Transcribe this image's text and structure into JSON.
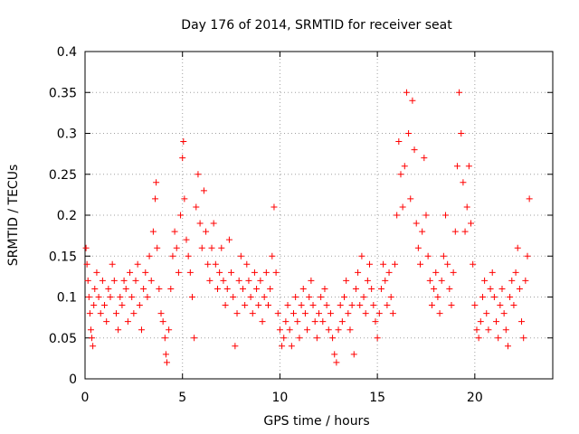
{
  "chart_data": {
    "type": "scatter",
    "title": "Day 176 of 2014, SRMTID for receiver seat",
    "xlabel": "GPS time / hours",
    "ylabel": "SRMTID / TECUs",
    "xlim": [
      0,
      24
    ],
    "ylim": [
      0,
      0.4
    ],
    "x_ticks": [
      0,
      5,
      10,
      15,
      20
    ],
    "x_tick_labels": [
      "0",
      "5",
      "10",
      "15",
      "20"
    ],
    "y_ticks": [
      0,
      0.05,
      0.1,
      0.15,
      0.2,
      0.25,
      0.3,
      0.35,
      0.4
    ],
    "y_tick_labels": [
      "0",
      "0.05",
      "0.1",
      "0.15",
      "0.2",
      "0.25",
      "0.3",
      "0.35",
      "0.4"
    ],
    "grid": true,
    "marker": "+",
    "marker_color": "#ff0000",
    "series": [
      {
        "name": "SRMTID",
        "points": [
          [
            0.05,
            0.16
          ],
          [
            0.1,
            0.14
          ],
          [
            0.15,
            0.12
          ],
          [
            0.2,
            0.1
          ],
          [
            0.25,
            0.08
          ],
          [
            0.3,
            0.06
          ],
          [
            0.35,
            0.05
          ],
          [
            0.4,
            0.04
          ],
          [
            0.45,
            0.09
          ],
          [
            0.5,
            0.11
          ],
          [
            0.6,
            0.13
          ],
          [
            0.7,
            0.1
          ],
          [
            0.8,
            0.08
          ],
          [
            0.9,
            0.12
          ],
          [
            1.0,
            0.09
          ],
          [
            1.1,
            0.07
          ],
          [
            1.2,
            0.11
          ],
          [
            1.3,
            0.1
          ],
          [
            1.4,
            0.14
          ],
          [
            1.5,
            0.12
          ],
          [
            1.6,
            0.08
          ],
          [
            1.7,
            0.06
          ],
          [
            1.8,
            0.1
          ],
          [
            1.9,
            0.09
          ],
          [
            2.0,
            0.12
          ],
          [
            2.1,
            0.11
          ],
          [
            2.2,
            0.07
          ],
          [
            2.3,
            0.13
          ],
          [
            2.4,
            0.1
          ],
          [
            2.5,
            0.08
          ],
          [
            2.6,
            0.12
          ],
          [
            2.7,
            0.14
          ],
          [
            2.8,
            0.09
          ],
          [
            2.9,
            0.06
          ],
          [
            3.0,
            0.11
          ],
          [
            3.1,
            0.13
          ],
          [
            3.2,
            0.1
          ],
          [
            3.3,
            0.15
          ],
          [
            3.4,
            0.12
          ],
          [
            3.5,
            0.18
          ],
          [
            3.6,
            0.22
          ],
          [
            3.65,
            0.24
          ],
          [
            3.7,
            0.16
          ],
          [
            3.8,
            0.11
          ],
          [
            3.9,
            0.08
          ],
          [
            4.0,
            0.07
          ],
          [
            4.1,
            0.05
          ],
          [
            4.15,
            0.03
          ],
          [
            4.2,
            0.02
          ],
          [
            4.3,
            0.06
          ],
          [
            4.4,
            0.11
          ],
          [
            4.5,
            0.15
          ],
          [
            4.6,
            0.18
          ],
          [
            4.7,
            0.16
          ],
          [
            4.8,
            0.13
          ],
          [
            4.9,
            0.2
          ],
          [
            5.0,
            0.27
          ],
          [
            5.05,
            0.29
          ],
          [
            5.1,
            0.22
          ],
          [
            5.2,
            0.17
          ],
          [
            5.3,
            0.15
          ],
          [
            5.4,
            0.13
          ],
          [
            5.5,
            0.1
          ],
          [
            5.6,
            0.05
          ],
          [
            5.7,
            0.21
          ],
          [
            5.8,
            0.25
          ],
          [
            5.9,
            0.19
          ],
          [
            6.0,
            0.16
          ],
          [
            6.1,
            0.23
          ],
          [
            6.2,
            0.18
          ],
          [
            6.3,
            0.14
          ],
          [
            6.4,
            0.12
          ],
          [
            6.5,
            0.16
          ],
          [
            6.6,
            0.19
          ],
          [
            6.7,
            0.14
          ],
          [
            6.8,
            0.11
          ],
          [
            6.9,
            0.13
          ],
          [
            7.0,
            0.16
          ],
          [
            7.1,
            0.12
          ],
          [
            7.2,
            0.09
          ],
          [
            7.3,
            0.11
          ],
          [
            7.4,
            0.17
          ],
          [
            7.5,
            0.13
          ],
          [
            7.6,
            0.1
          ],
          [
            7.7,
            0.04
          ],
          [
            7.8,
            0.08
          ],
          [
            7.9,
            0.12
          ],
          [
            8.0,
            0.15
          ],
          [
            8.1,
            0.11
          ],
          [
            8.2,
            0.09
          ],
          [
            8.3,
            0.14
          ],
          [
            8.4,
            0.12
          ],
          [
            8.5,
            0.1
          ],
          [
            8.6,
            0.08
          ],
          [
            8.7,
            0.13
          ],
          [
            8.8,
            0.11
          ],
          [
            8.9,
            0.09
          ],
          [
            9.0,
            0.12
          ],
          [
            9.1,
            0.07
          ],
          [
            9.2,
            0.1
          ],
          [
            9.3,
            0.13
          ],
          [
            9.4,
            0.09
          ],
          [
            9.5,
            0.11
          ],
          [
            9.6,
            0.15
          ],
          [
            9.7,
            0.21
          ],
          [
            9.8,
            0.13
          ],
          [
            9.9,
            0.08
          ],
          [
            10.0,
            0.06
          ],
          [
            10.1,
            0.04
          ],
          [
            10.2,
            0.05
          ],
          [
            10.3,
            0.07
          ],
          [
            10.4,
            0.09
          ],
          [
            10.5,
            0.06
          ],
          [
            10.6,
            0.04
          ],
          [
            10.7,
            0.08
          ],
          [
            10.8,
            0.1
          ],
          [
            10.9,
            0.07
          ],
          [
            11.0,
            0.05
          ],
          [
            11.1,
            0.09
          ],
          [
            11.2,
            0.11
          ],
          [
            11.3,
            0.08
          ],
          [
            11.4,
            0.06
          ],
          [
            11.5,
            0.1
          ],
          [
            11.6,
            0.12
          ],
          [
            11.7,
            0.09
          ],
          [
            11.8,
            0.07
          ],
          [
            11.9,
            0.05
          ],
          [
            12.0,
            0.08
          ],
          [
            12.1,
            0.1
          ],
          [
            12.2,
            0.07
          ],
          [
            12.3,
            0.11
          ],
          [
            12.4,
            0.09
          ],
          [
            12.5,
            0.06
          ],
          [
            12.6,
            0.08
          ],
          [
            12.7,
            0.05
          ],
          [
            12.8,
            0.03
          ],
          [
            12.9,
            0.02
          ],
          [
            13.0,
            0.06
          ],
          [
            13.1,
            0.09
          ],
          [
            13.2,
            0.07
          ],
          [
            13.3,
            0.1
          ],
          [
            13.4,
            0.12
          ],
          [
            13.5,
            0.08
          ],
          [
            13.6,
            0.06
          ],
          [
            13.7,
            0.09
          ],
          [
            13.8,
            0.03
          ],
          [
            13.9,
            0.11
          ],
          [
            14.0,
            0.13
          ],
          [
            14.1,
            0.09
          ],
          [
            14.2,
            0.15
          ],
          [
            14.3,
            0.1
          ],
          [
            14.4,
            0.08
          ],
          [
            14.5,
            0.12
          ],
          [
            14.6,
            0.14
          ],
          [
            14.7,
            0.11
          ],
          [
            14.8,
            0.09
          ],
          [
            14.9,
            0.07
          ],
          [
            15.0,
            0.05
          ],
          [
            15.1,
            0.08
          ],
          [
            15.2,
            0.11
          ],
          [
            15.3,
            0.14
          ],
          [
            15.4,
            0.12
          ],
          [
            15.5,
            0.09
          ],
          [
            15.6,
            0.13
          ],
          [
            15.7,
            0.1
          ],
          [
            15.8,
            0.08
          ],
          [
            15.9,
            0.14
          ],
          [
            16.0,
            0.2
          ],
          [
            16.1,
            0.29
          ],
          [
            16.2,
            0.25
          ],
          [
            16.3,
            0.21
          ],
          [
            16.4,
            0.26
          ],
          [
            16.5,
            0.35
          ],
          [
            16.6,
            0.3
          ],
          [
            16.7,
            0.22
          ],
          [
            16.8,
            0.34
          ],
          [
            16.9,
            0.28
          ],
          [
            17.0,
            0.19
          ],
          [
            17.1,
            0.16
          ],
          [
            17.2,
            0.14
          ],
          [
            17.3,
            0.18
          ],
          [
            17.4,
            0.27
          ],
          [
            17.5,
            0.2
          ],
          [
            17.6,
            0.15
          ],
          [
            17.7,
            0.12
          ],
          [
            17.8,
            0.09
          ],
          [
            17.9,
            0.11
          ],
          [
            18.0,
            0.13
          ],
          [
            18.1,
            0.1
          ],
          [
            18.2,
            0.08
          ],
          [
            18.3,
            0.12
          ],
          [
            18.4,
            0.15
          ],
          [
            18.5,
            0.2
          ],
          [
            18.6,
            0.14
          ],
          [
            18.7,
            0.11
          ],
          [
            18.8,
            0.09
          ],
          [
            18.9,
            0.13
          ],
          [
            19.0,
            0.18
          ],
          [
            19.1,
            0.26
          ],
          [
            19.2,
            0.35
          ],
          [
            19.3,
            0.3
          ],
          [
            19.4,
            0.24
          ],
          [
            19.5,
            0.18
          ],
          [
            19.6,
            0.21
          ],
          [
            19.7,
            0.26
          ],
          [
            19.8,
            0.19
          ],
          [
            19.9,
            0.14
          ],
          [
            20.0,
            0.09
          ],
          [
            20.1,
            0.06
          ],
          [
            20.2,
            0.05
          ],
          [
            20.3,
            0.07
          ],
          [
            20.4,
            0.1
          ],
          [
            20.5,
            0.12
          ],
          [
            20.6,
            0.08
          ],
          [
            20.7,
            0.06
          ],
          [
            20.8,
            0.11
          ],
          [
            20.9,
            0.13
          ],
          [
            21.0,
            0.1
          ],
          [
            21.1,
            0.07
          ],
          [
            21.2,
            0.05
          ],
          [
            21.3,
            0.09
          ],
          [
            21.4,
            0.11
          ],
          [
            21.5,
            0.08
          ],
          [
            21.6,
            0.06
          ],
          [
            21.7,
            0.04
          ],
          [
            21.8,
            0.1
          ],
          [
            21.9,
            0.12
          ],
          [
            22.0,
            0.09
          ],
          [
            22.1,
            0.13
          ],
          [
            22.2,
            0.16
          ],
          [
            22.3,
            0.11
          ],
          [
            22.4,
            0.07
          ],
          [
            22.5,
            0.05
          ],
          [
            22.6,
            0.12
          ],
          [
            22.7,
            0.15
          ],
          [
            22.8,
            0.22
          ]
        ]
      }
    ]
  }
}
